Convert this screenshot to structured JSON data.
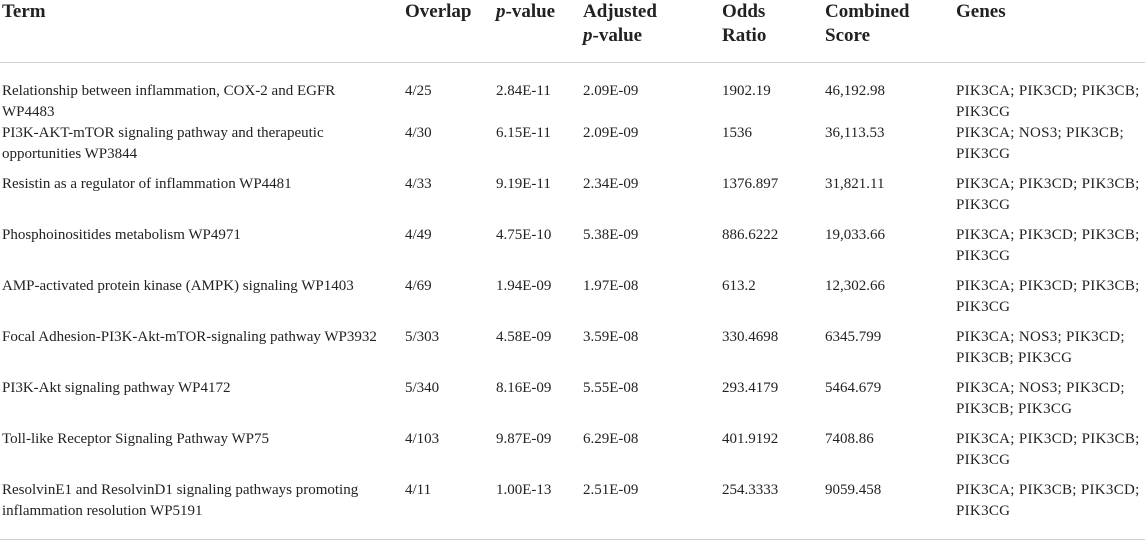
{
  "table": {
    "headers": {
      "term": "Term",
      "overlap": "Overlap",
      "pvalue_italic": "p",
      "pvalue_rest": "-value",
      "adjusted_line1": "Adjusted",
      "adjusted_italic": "p",
      "adjusted_rest": "-value",
      "odds_line1": "Odds",
      "odds_line2": "Ratio",
      "combined_line1": "Combined",
      "combined_line2": "Score",
      "genes": "Genes"
    },
    "rows": [
      {
        "term": "Relationship between inflammation, COX-2 and EGFR WP4483",
        "overlap": "4/25",
        "pvalue": "2.84E-11",
        "adjusted": "2.09E-09",
        "odds": "1902.19",
        "combined": "46,192.98",
        "genes": "PIK3CA; PIK3CD; PIK3CB; PIK3CG"
      },
      {
        "term": "PI3K-AKT-mTOR signaling pathway and therapeutic opportunities WP3844",
        "overlap": "4/30",
        "pvalue": "6.15E-11",
        "adjusted": "2.09E-09",
        "odds": "1536",
        "combined": "36,113.53",
        "genes": "PIK3CA; NOS3; PIK3CB; PIK3CG"
      },
      {
        "term": "Resistin as a regulator of inflammation WP4481",
        "overlap": "4/33",
        "pvalue": "9.19E-11",
        "adjusted": "2.34E-09",
        "odds": "1376.897",
        "combined": "31,821.11",
        "genes": "PIK3CA; PIK3CD; PIK3CB; PIK3CG"
      },
      {
        "term": "Phosphoinositides metabolism WP4971",
        "overlap": "4/49",
        "pvalue": "4.75E-10",
        "adjusted": "5.38E-09",
        "odds": "886.6222",
        "combined": "19,033.66",
        "genes": "PIK3CA; PIK3CD; PIK3CB; PIK3CG"
      },
      {
        "term": "AMP-activated protein kinase (AMPK) signaling WP1403",
        "overlap": "4/69",
        "pvalue": "1.94E-09",
        "adjusted": "1.97E-08",
        "odds": "613.2",
        "combined": "12,302.66",
        "genes": "PIK3CA; PIK3CD; PIK3CB; PIK3CG"
      },
      {
        "term": "Focal Adhesion-PI3K-Akt-mTOR-signaling pathway WP3932",
        "overlap": "5/303",
        "pvalue": "4.58E-09",
        "adjusted": "3.59E-08",
        "odds": "330.4698",
        "combined": "6345.799",
        "genes": "PIK3CA; NOS3; PIK3CD; PIK3CB; PIK3CG"
      },
      {
        "term": "PI3K-Akt signaling pathway WP4172",
        "overlap": "5/340",
        "pvalue": "8.16E-09",
        "adjusted": "5.55E-08",
        "odds": "293.4179",
        "combined": "5464.679",
        "genes": "PIK3CA; NOS3; PIK3CD; PIK3CB; PIK3CG"
      },
      {
        "term": "Toll-like Receptor Signaling Pathway WP75",
        "overlap": "4/103",
        "pvalue": "9.87E-09",
        "adjusted": "6.29E-08",
        "odds": "401.9192",
        "combined": "7408.86",
        "genes": "PIK3CA; PIK3CD; PIK3CB; PIK3CG"
      },
      {
        "term": "ResolvinE1 and ResolvinD1 signaling pathways promoting inflammation resolution WP5191",
        "overlap": "4/11",
        "pvalue": "1.00E-13",
        "adjusted": "2.51E-09",
        "odds": "254.3333",
        "combined": "9059.458",
        "genes": "PIK3CA; PIK3CB; PIK3CD; PIK3CG"
      }
    ]
  }
}
